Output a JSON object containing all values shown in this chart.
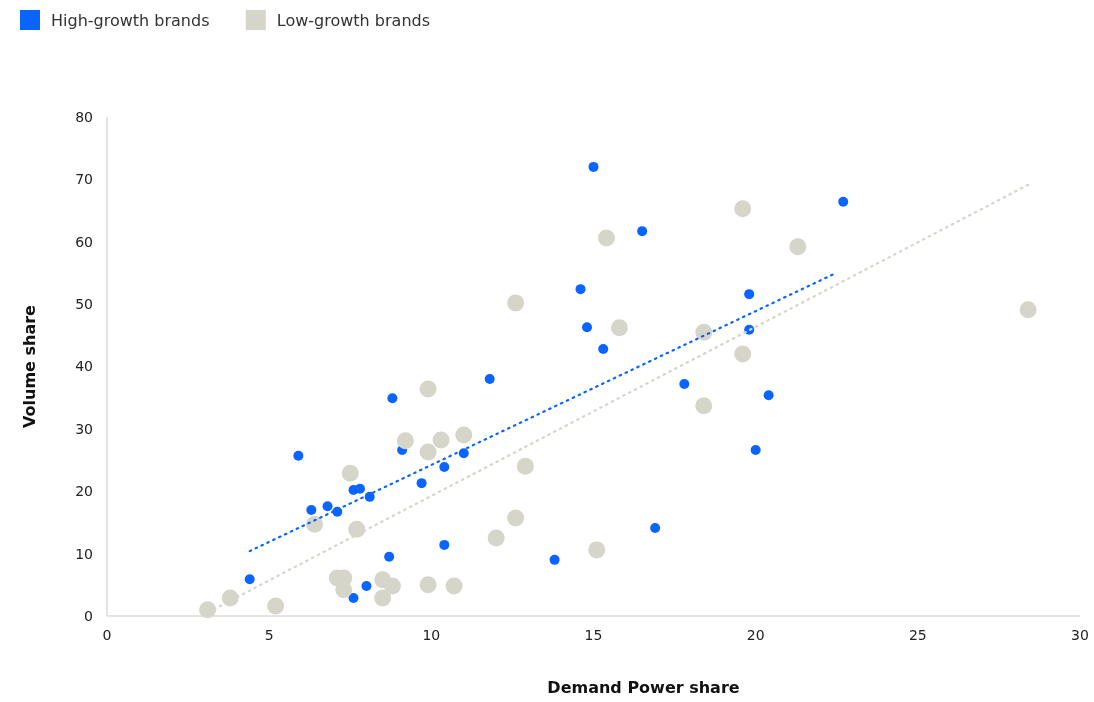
{
  "chart_data": {
    "type": "scatter",
    "xlabel": "Demand Power share",
    "ylabel": "Volume share",
    "xlim": [
      0,
      30
    ],
    "xticks": [
      0,
      5,
      10,
      15,
      20,
      25,
      30
    ],
    "ylim": [
      0,
      80
    ],
    "yticks": [
      0,
      10,
      20,
      30,
      40,
      50,
      60,
      70,
      80
    ],
    "grid": false,
    "legend": "top left",
    "marker": "circle",
    "series": [
      {
        "name": "High-growth brands",
        "color": "#0a64ff",
        "x": [
          4.4,
          7.6,
          8.0,
          8.7,
          10.4,
          13.8,
          16.9,
          5.9,
          6.3,
          6.8,
          7.1,
          7.6,
          7.8,
          8.1,
          8.8,
          9.1,
          9.7,
          10.4,
          11.0,
          11.8,
          15.0,
          14.6,
          14.8,
          15.3,
          16.5,
          17.8,
          19.8,
          19.8,
          20.4,
          20.0,
          22.7
        ],
        "values": [
          5.9,
          2.9,
          4.8,
          9.5,
          11.4,
          9.0,
          14.1,
          25.7,
          17.0,
          17.6,
          16.7,
          20.2,
          20.4,
          19.1,
          34.9,
          26.6,
          21.3,
          23.9,
          26.1,
          38.0,
          72.0,
          52.4,
          46.3,
          42.8,
          61.7,
          37.2,
          51.6,
          45.9,
          35.4,
          26.6,
          66.4
        ]
      },
      {
        "name": "Low-growth brands",
        "color": "#d6d5ca",
        "x": [
          3.1,
          3.8,
          5.2,
          6.4,
          7.5,
          7.7,
          7.1,
          7.3,
          7.3,
          8.5,
          8.8,
          8.5,
          9.9,
          10.7,
          9.2,
          9.9,
          9.9,
          10.3,
          11.0,
          12.0,
          12.6,
          12.9,
          12.6,
          15.1,
          15.4,
          15.8,
          18.4,
          18.4,
          19.6,
          19.6,
          21.3,
          28.4
        ],
        "values": [
          1.0,
          2.9,
          1.6,
          14.7,
          22.9,
          13.9,
          6.1,
          6.1,
          4.2,
          5.8,
          4.8,
          2.9,
          5.0,
          4.8,
          28.1,
          26.3,
          36.4,
          28.2,
          29.0,
          12.5,
          15.7,
          24.0,
          50.2,
          10.6,
          60.6,
          46.2,
          45.5,
          33.7,
          42.0,
          65.3,
          59.2,
          49.1
        ]
      },
      {
        "type": "line",
        "color": "#0a64ff",
        "line_style": "dotted",
        "marker": "none",
        "x": [
          4.4,
          22.4
        ],
        "values": [
          10.4,
          54.8
        ]
      },
      {
        "type": "line",
        "color": "#d6d5ca",
        "line_style": "dotted",
        "marker": "none",
        "x": [
          3.3,
          28.5
        ],
        "values": [
          1.1,
          69.4
        ]
      }
    ]
  }
}
